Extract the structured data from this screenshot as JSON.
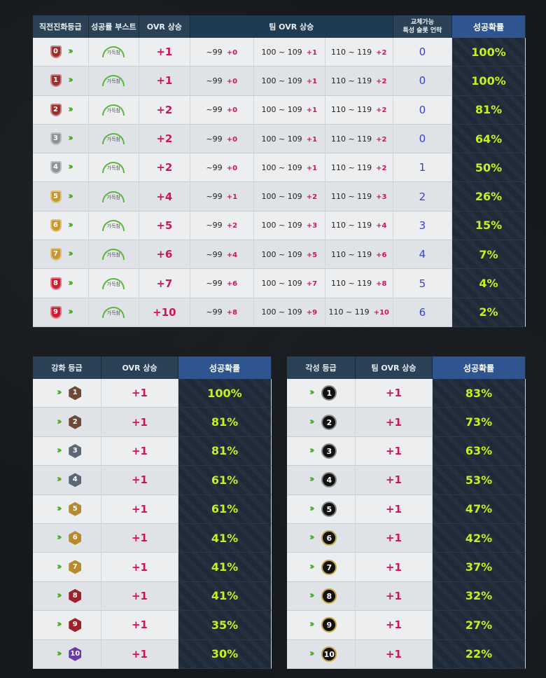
{
  "top_table": {
    "headers": {
      "grade": "직전진화등급",
      "boost": "성공률 부스트",
      "ovr": "OVR 상승",
      "team_ovr": "팀 OVR 상승",
      "slot_line1": "교체가능",
      "slot_line2": "특성 슬롯 언락",
      "prob": "성공확률"
    },
    "boost_label": "가득참",
    "range_labels": [
      "~99",
      "100 ~ 109",
      "110 ~ 119"
    ],
    "rows": [
      {
        "grade": "0",
        "ovr": "+1",
        "t1": "+0",
        "t2": "+1",
        "t3": "+2",
        "slots": "0",
        "prob": "100%"
      },
      {
        "grade": "1",
        "ovr": "+1",
        "t1": "+0",
        "t2": "+1",
        "t3": "+2",
        "slots": "0",
        "prob": "100%"
      },
      {
        "grade": "2",
        "ovr": "+2",
        "t1": "+0",
        "t2": "+1",
        "t3": "+2",
        "slots": "0",
        "prob": "81%"
      },
      {
        "grade": "3",
        "ovr": "+2",
        "t1": "+0",
        "t2": "+1",
        "t3": "+2",
        "slots": "0",
        "prob": "64%"
      },
      {
        "grade": "4",
        "ovr": "+2",
        "t1": "+0",
        "t2": "+1",
        "t3": "+2",
        "slots": "1",
        "prob": "50%"
      },
      {
        "grade": "5",
        "ovr": "+4",
        "t1": "+1",
        "t2": "+2",
        "t3": "+3",
        "slots": "2",
        "prob": "26%"
      },
      {
        "grade": "6",
        "ovr": "+5",
        "t1": "+2",
        "t2": "+3",
        "t3": "+4",
        "slots": "3",
        "prob": "15%"
      },
      {
        "grade": "7",
        "ovr": "+6",
        "t1": "+4",
        "t2": "+5",
        "t3": "+6",
        "slots": "4",
        "prob": "7%"
      },
      {
        "grade": "8",
        "ovr": "+7",
        "t1": "+6",
        "t2": "+7",
        "t3": "+8",
        "slots": "5",
        "prob": "4%"
      },
      {
        "grade": "9",
        "ovr": "+10",
        "t1": "+8",
        "t2": "+9",
        "t3": "+10",
        "slots": "6",
        "prob": "2%"
      }
    ]
  },
  "enhance_table": {
    "headers": {
      "grade": "강화 등급",
      "ovr": "OVR 상승",
      "prob": "성공확률"
    },
    "rows": [
      {
        "grade": "1",
        "ovr": "+1",
        "prob": "100%"
      },
      {
        "grade": "2",
        "ovr": "+1",
        "prob": "81%"
      },
      {
        "grade": "3",
        "ovr": "+1",
        "prob": "81%"
      },
      {
        "grade": "4",
        "ovr": "+1",
        "prob": "61%"
      },
      {
        "grade": "5",
        "ovr": "+1",
        "prob": "61%"
      },
      {
        "grade": "6",
        "ovr": "+1",
        "prob": "41%"
      },
      {
        "grade": "7",
        "ovr": "+1",
        "prob": "41%"
      },
      {
        "grade": "8",
        "ovr": "+1",
        "prob": "41%"
      },
      {
        "grade": "9",
        "ovr": "+1",
        "prob": "35%"
      },
      {
        "grade": "10",
        "ovr": "+1",
        "prob": "30%"
      }
    ]
  },
  "awaken_table": {
    "headers": {
      "grade": "각성 등급",
      "ovr": "팀 OVR 상승",
      "prob": "성공확률"
    },
    "rows": [
      {
        "grade": "1",
        "ovr": "+1",
        "prob": "83%"
      },
      {
        "grade": "2",
        "ovr": "+1",
        "prob": "73%"
      },
      {
        "grade": "3",
        "ovr": "+1",
        "prob": "63%"
      },
      {
        "grade": "4",
        "ovr": "+1",
        "prob": "53%"
      },
      {
        "grade": "5",
        "ovr": "+1",
        "prob": "47%"
      },
      {
        "grade": "6",
        "ovr": "+1",
        "prob": "42%"
      },
      {
        "grade": "7",
        "ovr": "+1",
        "prob": "37%"
      },
      {
        "grade": "8",
        "ovr": "+1",
        "prob": "32%"
      },
      {
        "grade": "9",
        "ovr": "+1",
        "prob": "27%"
      },
      {
        "grade": "10",
        "ovr": "+1",
        "prob": "22%"
      }
    ]
  },
  "colors": {
    "header_bg": "#2b4256",
    "prob_header_bg": "#2f5590",
    "prob_text": "#c8f01e",
    "plus_text": "#d0145a",
    "slot_text": "#3b3fd0",
    "arrow": "#4fae2e"
  }
}
